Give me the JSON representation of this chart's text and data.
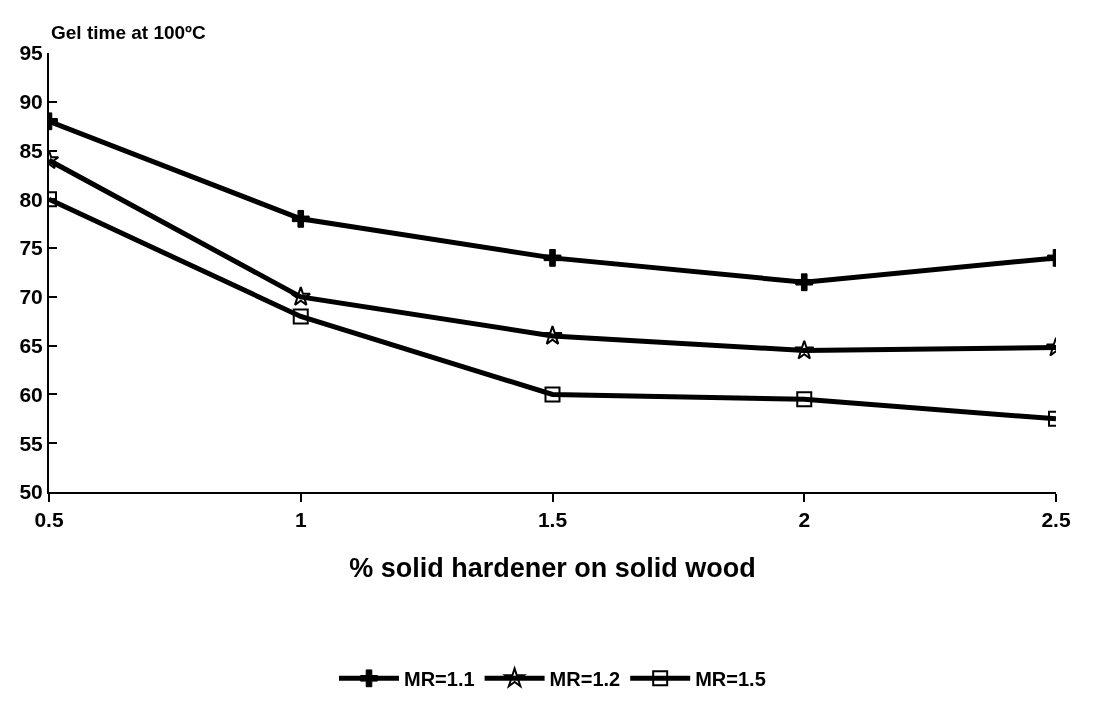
{
  "chart_data": {
    "type": "line",
    "ylabel": "Gel time at 100ºC",
    "xlabel": "% solid hardener on solid wood",
    "x": [
      0.5,
      1,
      1.5,
      2,
      2.5
    ],
    "series": [
      {
        "name": "MR=1.1",
        "color": "#000000",
        "marker": "cross",
        "values": [
          88,
          78,
          74,
          71.5,
          74
        ]
      },
      {
        "name": "MR=1.2",
        "color": "#000000",
        "marker": "star",
        "values": [
          84,
          70,
          66,
          64.5,
          64.8
        ]
      },
      {
        "name": "MR=1.5",
        "color": "#000000",
        "marker": "square",
        "values": [
          80,
          68,
          60,
          59.5,
          57.5
        ]
      }
    ],
    "xlim": [
      0.5,
      2.5
    ],
    "xticks": [
      0.5,
      1,
      1.5,
      2,
      2.5
    ],
    "ylim": [
      50,
      95
    ],
    "yticks": [
      50,
      55,
      60,
      65,
      70,
      75,
      80,
      85,
      90,
      95
    ],
    "legend": "bottom",
    "line_style": "solid"
  }
}
